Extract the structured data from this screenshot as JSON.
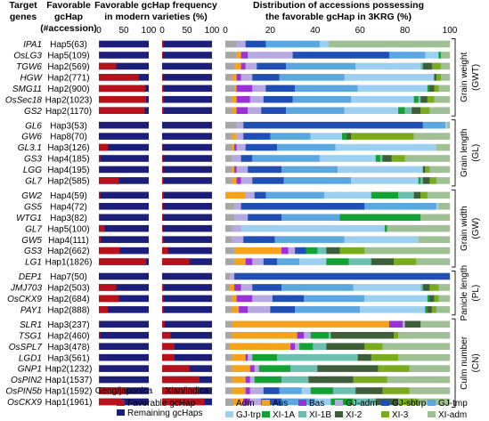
{
  "chart_data": {
    "type": "bar",
    "headers": {
      "genes": [
        "Target",
        "genes"
      ],
      "hap": [
        "Favorable",
        "gcHap",
        "(#accession)"
      ],
      "freq": [
        "Favorable gcHap frequency",
        "in modern varieties (%)"
      ],
      "dist": [
        "Distribution of accessions possessing",
        "the favorable gcHap in 3KRG (%)"
      ]
    },
    "panel_labels": {
      "geng": "Geng/japonica",
      "xian": "Xian/indica"
    },
    "freq_ticks": [
      "0",
      "50",
      "100"
    ],
    "dist_ticks": [
      "0",
      "20",
      "40",
      "60",
      "80",
      "100"
    ],
    "colors": {
      "favorable": "#b5121b",
      "remaining": "#1c1f7a",
      "subpops": [
        "#a6a6a6",
        "#f5a31a",
        "#9b30d9",
        "#b6a8e0",
        "#1f4fb4",
        "#5ba7e0",
        "#9dcff0",
        "#12a133",
        "#6abfb1",
        "#3e5e3a",
        "#7aab1e",
        "#9fbf94"
      ]
    },
    "legend_left": [
      "Favorable gcHap",
      "Remaining gcHaps"
    ],
    "subpops": [
      "Adm",
      "Aus",
      "Bas",
      "GJ-adm",
      "GJ-sbtrp",
      "GJ-tmp",
      "GJ-trp",
      "XI-1A",
      "XI-1B",
      "XI-2",
      "XI-3",
      "XI-adm"
    ],
    "groups": [
      {
        "trait": [
          "Grain weight",
          "(GWT)"
        ],
        "rows": [
          {
            "gene": "IPA1",
            "hap": "Hap5(63)",
            "geng": 2,
            "xian": 3,
            "dist": [
              5,
              0,
              0,
              4,
              9,
              24,
              4,
              0,
              0,
              0,
              0,
              54
            ]
          },
          {
            "gene": "OsLG3",
            "hap": "Hap5(109)",
            "geng": 2,
            "xian": 2,
            "dist": [
              5,
              2,
              3,
              20,
              43,
              16,
              6,
              1,
              0,
              0,
              0,
              4
            ]
          },
          {
            "gene": "TGW6",
            "hap": "Hap2(569)",
            "geng": 35,
            "xian": 0,
            "dist": [
              4,
              3,
              2,
              5,
              13,
              31,
              29,
              0,
              1,
              4,
              4,
              4
            ]
          },
          {
            "gene": "HGW",
            "hap": "Hap2(771)",
            "geng": 80,
            "xian": 2,
            "dist": [
              3,
              2,
              2,
              5,
              12,
              29,
              40,
              0,
              0,
              1,
              2,
              4
            ]
          },
          {
            "gene": "SMG11",
            "hap": "Hap2(900)",
            "geng": 93,
            "xian": 3,
            "dist": [
              4,
              1,
              7,
              6,
              13,
              28,
              31,
              1,
              0,
              2,
              2,
              5
            ]
          },
          {
            "gene": "OsSec18",
            "hap": "Hap2(1023)",
            "geng": 95,
            "xian": 3,
            "dist": [
              3,
              2,
              6,
              6,
              13,
              26,
              28,
              2,
              1,
              3,
              3,
              7
            ]
          },
          {
            "gene": "GS2",
            "hap": "Hap2(1170)",
            "geng": 92,
            "xian": 3,
            "dist": [
              3,
              2,
              5,
              6,
              11,
              26,
              24,
              3,
              3,
              4,
              4,
              9
            ]
          }
        ]
      },
      {
        "trait": [
          "Grain length",
          "(GL)"
        ],
        "rows": [
          {
            "gene": "GL6",
            "hap": "Hap3(53)",
            "geng": 0,
            "xian": 0,
            "dist": [
              5,
              0,
              0,
              3,
              80,
              10,
              1,
              0,
              0,
              0,
              0,
              1
            ]
          },
          {
            "gene": "GW6",
            "hap": "Hap8(70)",
            "geng": 0,
            "xian": 0,
            "dist": [
              3,
              2,
              0,
              3,
              12,
              18,
              14,
              2,
              0,
              2,
              28,
              16
            ]
          },
          {
            "gene": "GL3.1",
            "hap": "Hap3(126)",
            "geng": 18,
            "xian": 1,
            "dist": [
              3,
              1,
              1,
              4,
              14,
              26,
              45,
              0,
              0,
              0,
              0,
              6
            ]
          },
          {
            "gene": "GS3",
            "hap": "Hap4(185)",
            "geng": 3,
            "xian": 2,
            "dist": [
              3,
              0,
              0,
              4,
              5,
              30,
              25,
              2,
              1,
              4,
              6,
              20
            ]
          },
          {
            "gene": "LGG",
            "hap": "Hap4(195)",
            "geng": 2,
            "xian": 2,
            "dist": [
              3,
              1,
              1,
              5,
              15,
              25,
              38,
              0,
              0,
              1,
              2,
              9
            ]
          },
          {
            "gene": "GL7",
            "hap": "Hap2(585)",
            "geng": 40,
            "xian": 3,
            "dist": [
              3,
              2,
              2,
              5,
              14,
              30,
              30,
              1,
              1,
              3,
              3,
              6
            ]
          }
        ]
      },
      {
        "trait": [
          "Grain width",
          "(GW)"
        ],
        "rows": [
          {
            "gene": "GW2",
            "hap": "Hap4(59)",
            "geng": 3,
            "xian": 3,
            "dist": [
              0,
              9,
              0,
              4,
              5,
              26,
              21,
              12,
              7,
              3,
              3,
              10
            ]
          },
          {
            "gene": "GS5",
            "hap": "Hap4(72)",
            "geng": 2,
            "xian": 2,
            "dist": [
              4,
              0,
              0,
              3,
              55,
              32,
              1,
              0,
              0,
              0,
              0,
              5
            ]
          },
          {
            "gene": "WTG1",
            "hap": "Hap3(82)",
            "geng": 2,
            "xian": 2,
            "dist": [
              4,
              0,
              0,
              6,
              15,
              26,
              0,
              36,
              0,
              0,
              0,
              13
            ]
          },
          {
            "gene": "GL7",
            "hap": "Hap5(100)",
            "geng": 12,
            "xian": 2,
            "dist": [
              3,
              0,
              0,
              4,
              0,
              0,
              64,
              1,
              0,
              0,
              0,
              28
            ]
          },
          {
            "gene": "GW5",
            "hap": "Hap4(111)",
            "geng": 4,
            "xian": 3,
            "dist": [
              3,
              0,
              0,
              5,
              14,
              31,
              33,
              0,
              0,
              0,
              0,
              14
            ]
          },
          {
            "gene": "GS3",
            "hap": "Hap2(662)",
            "geng": 42,
            "xian": 12,
            "dist": [
              4,
              21,
              3,
              3,
              5,
              0,
              0,
              5,
              4,
              6,
              11,
              38
            ]
          },
          {
            "gene": "LG1",
            "hap": "Hap1(1826)",
            "geng": 95,
            "xian": 55,
            "dist": [
              4,
              5,
              3,
              5,
              6,
              10,
              12,
              10,
              10,
              10,
              10,
              15
            ]
          }
        ]
      },
      {
        "trait": [
          "Panicle length",
          "(PL)"
        ],
        "rows": [
          {
            "gene": "DEP1",
            "hap": "Hap7(50)",
            "geng": 0,
            "xian": 0,
            "dist": [
              2,
              0,
              0,
              2,
              96,
              0,
              0,
              0,
              0,
              0,
              0,
              0
            ]
          },
          {
            "gene": "JMJ703",
            "hap": "Hap2(503)",
            "geng": 35,
            "xian": 3,
            "dist": [
              2,
              2,
              3,
              5,
              13,
              32,
              30,
              0,
              1,
              3,
              4,
              5
            ]
          },
          {
            "gene": "OsCKX9",
            "hap": "Hap2(684)",
            "geng": 40,
            "xian": 3,
            "dist": [
              3,
              2,
              7,
              9,
              14,
              27,
              28,
              1,
              0,
              2,
              2,
              5
            ]
          },
          {
            "gene": "PAY1",
            "hap": "Hap2(888)",
            "geng": 18,
            "xian": 3,
            "dist": [
              3,
              3,
              4,
              10,
              11,
              29,
              29,
              1,
              0,
              2,
              2,
              6
            ]
          }
        ]
      },
      {
        "trait": [
          "Culm number",
          "(CN)"
        ],
        "rows": [
          {
            "gene": "SLR1",
            "hap": "Hap3(237)",
            "geng": 2,
            "xian": 5,
            "dist": [
              3,
              70,
              6,
              1,
              0,
              0,
              0,
              0,
              0,
              7,
              0,
              13
            ]
          },
          {
            "gene": "TSG1",
            "hap": "Hap2(460)",
            "geng": 3,
            "xian": 17,
            "dist": [
              3,
              29,
              3,
              3,
              0,
              0,
              0,
              8,
              1,
              28,
              2,
              23
            ]
          },
          {
            "gene": "OsSPL7",
            "hap": "Hap3(478)",
            "geng": 2,
            "xian": 25,
            "dist": [
              2,
              27,
              2,
              2,
              0,
              0,
              0,
              6,
              6,
              17,
              8,
              30
            ]
          },
          {
            "gene": "LGD1",
            "hap": "Hap3(561)",
            "geng": 2,
            "xian": 25,
            "dist": [
              3,
              6,
              1,
              2,
              0,
              0,
              0,
              11,
              36,
              6,
              12,
              23
            ]
          },
          {
            "gene": "GNP1",
            "hap": "Hap2(1232)",
            "geng": 2,
            "xian": 55,
            "dist": [
              3,
              8,
              2,
              2,
              0,
              0,
              0,
              14,
              12,
              27,
              14,
              18
            ]
          },
          {
            "gene": "OsPIN2",
            "hap": "Hap1(1537)",
            "geng": 2,
            "xian": 75,
            "dist": [
              3,
              6,
              2,
              2,
              0,
              0,
              0,
              12,
              12,
              20,
              15,
              28
            ]
          },
          {
            "gene": "OsPIN5b",
            "hap": "Hap1(1592)",
            "geng": 55,
            "xian": 75,
            "dist": [
              3,
              6,
              2,
              6,
              7,
              10,
              4,
              10,
              10,
              12,
              12,
              18
            ]
          },
          {
            "gene": "OsCKX9",
            "hap": "Hap1(1961)",
            "geng": 45,
            "xian": 85,
            "dist": [
              3,
              5,
              3,
              5,
              9,
              15,
              7,
              10,
              10,
              10,
              9,
              14
            ]
          }
        ]
      }
    ]
  }
}
